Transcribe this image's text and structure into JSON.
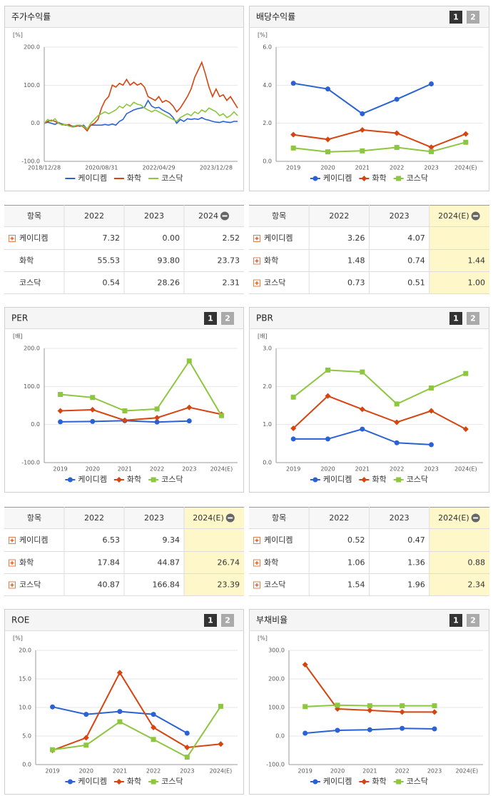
{
  "chart_data": [
    {
      "type": "line",
      "title": "주가수익률",
      "y_unit": "[%]",
      "categories": [
        "2018/12/28",
        null,
        null,
        null,
        null,
        null,
        null,
        null,
        null,
        null,
        null,
        null,
        null,
        null,
        null,
        null,
        "2020/08/31",
        null,
        null,
        null,
        null,
        null,
        null,
        null,
        null,
        null,
        null,
        null,
        null,
        null,
        null,
        null,
        "2022/04/29",
        null,
        null,
        null,
        null,
        null,
        null,
        null,
        null,
        null,
        null,
        null,
        null,
        null,
        null,
        null,
        "2023/12/28",
        null,
        null,
        null,
        null,
        null,
        null
      ],
      "ylim": [
        -100,
        200
      ],
      "yticks": [
        {
          "value": -100,
          "label": "-100.0"
        },
        {
          "value": 0,
          "label": "0.0"
        },
        {
          "value": 100,
          "label": "100.0"
        },
        {
          "value": 200,
          "label": "200.0"
        }
      ],
      "series": [
        {
          "name": "케이디켐",
          "color": "#2a62d4",
          "values": [
            0,
            3,
            0,
            -3,
            2,
            -2,
            -5,
            -5,
            -8,
            -6,
            -8,
            -5,
            -15,
            -5,
            -5,
            -5,
            -5,
            -3,
            -5,
            -2,
            -5,
            5,
            10,
            25,
            30,
            35,
            38,
            40,
            42,
            60,
            45,
            40,
            42,
            35,
            30,
            25,
            15,
            0,
            10,
            5,
            12,
            10,
            12,
            10,
            15,
            10,
            8,
            5,
            3,
            2,
            5,
            3,
            2,
            5,
            5
          ]
        },
        {
          "name": "화학",
          "color": "#d6440f",
          "values": [
            0,
            5,
            8,
            5,
            0,
            -3,
            -5,
            -3,
            -10,
            -8,
            -5,
            -10,
            -20,
            -5,
            0,
            10,
            40,
            60,
            70,
            100,
            95,
            105,
            100,
            115,
            100,
            108,
            100,
            105,
            95,
            70,
            65,
            60,
            70,
            55,
            60,
            55,
            45,
            30,
            40,
            55,
            70,
            90,
            120,
            140,
            160,
            130,
            95,
            70,
            90,
            70,
            75,
            60,
            70,
            55,
            40
          ]
        },
        {
          "name": "코스닥",
          "color": "#8dc63f",
          "values": [
            0,
            10,
            5,
            12,
            0,
            -5,
            -3,
            -8,
            -10,
            -5,
            -5,
            -8,
            -15,
            0,
            10,
            20,
            25,
            30,
            25,
            30,
            35,
            45,
            40,
            50,
            45,
            55,
            50,
            48,
            40,
            35,
            30,
            35,
            30,
            25,
            20,
            15,
            10,
            5,
            15,
            20,
            25,
            20,
            30,
            25,
            35,
            30,
            40,
            35,
            30,
            20,
            25,
            15,
            20,
            30,
            20
          ]
        }
      ]
    },
    {
      "type": "line",
      "markers": true,
      "title": "배당수익률",
      "y_unit": "[%]",
      "categories": [
        "2019",
        "2020",
        "2021",
        "2022",
        "2023",
        "2024(E)"
      ],
      "ylim": [
        0,
        6
      ],
      "yticks": [
        {
          "value": 0,
          "label": "0.0"
        },
        {
          "value": 2,
          "label": "2.0"
        },
        {
          "value": 4,
          "label": "4.0"
        },
        {
          "value": 6,
          "label": "6.0"
        }
      ],
      "series": [
        {
          "name": "케이디켐",
          "color": "#2a62d4",
          "values": [
            4.1,
            3.8,
            2.5,
            3.26,
            4.07,
            null
          ]
        },
        {
          "name": "화학",
          "color": "#d6440f",
          "values": [
            1.4,
            1.15,
            1.65,
            1.48,
            0.74,
            1.44
          ]
        },
        {
          "name": "코스닥",
          "color": "#8dc63f",
          "values": [
            0.7,
            0.5,
            0.55,
            0.73,
            0.51,
            1.0
          ]
        }
      ]
    },
    {
      "type": "line",
      "markers": true,
      "title": "PER",
      "y_unit": "[배]",
      "categories": [
        "2019",
        "2020",
        "2021",
        "2022",
        "2023",
        "2024(E)"
      ],
      "ylim": [
        -100,
        200
      ],
      "yticks": [
        {
          "value": -100,
          "label": "-100.0"
        },
        {
          "value": 0,
          "label": "0.0"
        },
        {
          "value": 100,
          "label": "100.0"
        },
        {
          "value": 200,
          "label": "200.0"
        }
      ],
      "series": [
        {
          "name": "케이디켐",
          "color": "#2a62d4",
          "values": [
            7,
            8,
            10,
            6.53,
            9.34,
            null
          ]
        },
        {
          "name": "화학",
          "color": "#d6440f",
          "values": [
            36,
            39,
            11,
            17.84,
            44.87,
            26.74
          ]
        },
        {
          "name": "코스닥",
          "color": "#8dc63f",
          "values": [
            79,
            71,
            36,
            40.87,
            166.84,
            23.39
          ]
        }
      ]
    },
    {
      "type": "line",
      "markers": true,
      "title": "PBR",
      "y_unit": "[배]",
      "categories": [
        "2019",
        "2020",
        "2021",
        "2022",
        "2023",
        "2024(E)"
      ],
      "ylim": [
        0,
        3
      ],
      "yticks": [
        {
          "value": 0,
          "label": "0.0"
        },
        {
          "value": 1,
          "label": "1.0"
        },
        {
          "value": 2,
          "label": "2.0"
        },
        {
          "value": 3,
          "label": "3.0"
        }
      ],
      "series": [
        {
          "name": "케이디켐",
          "color": "#2a62d4",
          "values": [
            0.62,
            0.62,
            0.88,
            0.52,
            0.47,
            null
          ]
        },
        {
          "name": "화학",
          "color": "#d6440f",
          "values": [
            0.9,
            1.75,
            1.4,
            1.06,
            1.36,
            0.88
          ]
        },
        {
          "name": "코스닥",
          "color": "#8dc63f",
          "values": [
            1.72,
            2.43,
            2.38,
            1.54,
            1.96,
            2.34
          ]
        }
      ]
    },
    {
      "type": "line",
      "markers": true,
      "title": "ROE",
      "y_unit": "[%]",
      "categories": [
        "2019",
        "2020",
        "2021",
        "2022",
        "2023",
        "2024(E)"
      ],
      "ylim": [
        0,
        20
      ],
      "yticks": [
        {
          "value": 0,
          "label": "0.0"
        },
        {
          "value": 5,
          "label": "5.0"
        },
        {
          "value": 10,
          "label": "10.0"
        },
        {
          "value": 15,
          "label": "15.0"
        },
        {
          "value": 20,
          "label": "20.0"
        }
      ],
      "series": [
        {
          "name": "케이디켐",
          "color": "#2a62d4",
          "values": [
            10.1,
            8.8,
            9.3,
            8.8,
            5.5,
            null
          ]
        },
        {
          "name": "화학",
          "color": "#d6440f",
          "values": [
            2.5,
            4.7,
            16.1,
            6.5,
            3.0,
            3.6
          ]
        },
        {
          "name": "코스닥",
          "color": "#8dc63f",
          "values": [
            2.6,
            3.4,
            7.5,
            4.4,
            1.3,
            10.2
          ]
        }
      ]
    },
    {
      "type": "line",
      "markers": true,
      "title": "부채비율",
      "y_unit": "[%]",
      "categories": [
        "2019",
        "2020",
        "2021",
        "2022",
        "2023",
        "2024(E)"
      ],
      "ylim": [
        -100,
        300
      ],
      "yticks": [
        {
          "value": -100,
          "label": "-100.0"
        },
        {
          "value": 0,
          "label": "0.0"
        },
        {
          "value": 100,
          "label": "100.0"
        },
        {
          "value": 200,
          "label": "200.0"
        },
        {
          "value": 300,
          "label": "300.0"
        }
      ],
      "series": [
        {
          "name": "케이디켐",
          "color": "#2a62d4",
          "values": [
            10,
            20,
            22,
            27,
            25,
            null
          ]
        },
        {
          "name": "화학",
          "color": "#d6440f",
          "values": [
            250,
            95,
            90,
            84,
            84,
            null
          ]
        },
        {
          "name": "코스닥",
          "color": "#8dc63f",
          "values": [
            103,
            108,
            106,
            106,
            106,
            null
          ]
        }
      ]
    }
  ],
  "page_buttons": [
    "1",
    "2"
  ],
  "tables": [
    {
      "header": [
        "항목",
        "2022",
        "2023",
        "2024"
      ],
      "rows": [
        [
          "케이디켐",
          "7.32",
          "0.00",
          "2.52"
        ],
        [
          "화학",
          "55.53",
          "93.80",
          "23.73"
        ],
        [
          "코스닥",
          "0.54",
          "28.26",
          "2.31"
        ]
      ]
    },
    {
      "header": [
        "항목",
        "2022",
        "2023",
        "2024(E)"
      ],
      "rows": [
        [
          "케이디켐",
          "3.26",
          "4.07",
          null
        ],
        [
          "화학",
          "1.48",
          "0.74",
          "1.44"
        ],
        [
          "코스닥",
          "0.73",
          "0.51",
          "1.00"
        ]
      ]
    },
    {
      "header": [
        "항목",
        "2022",
        "2023",
        "2024(E)"
      ],
      "rows": [
        [
          "케이디켐",
          "6.53",
          "9.34",
          null
        ],
        [
          "화학",
          "17.84",
          "44.87",
          "26.74"
        ],
        [
          "코스닥",
          "40.87",
          "166.84",
          "23.39"
        ]
      ]
    },
    {
      "header": [
        "항목",
        "2022",
        "2023",
        "2024(E)"
      ],
      "rows": [
        [
          "케이디켐",
          "0.52",
          "0.47",
          null
        ],
        [
          "화학",
          "1.06",
          "1.36",
          "0.88"
        ],
        [
          "코스닥",
          "1.54",
          "1.96",
          "2.34"
        ]
      ]
    }
  ]
}
